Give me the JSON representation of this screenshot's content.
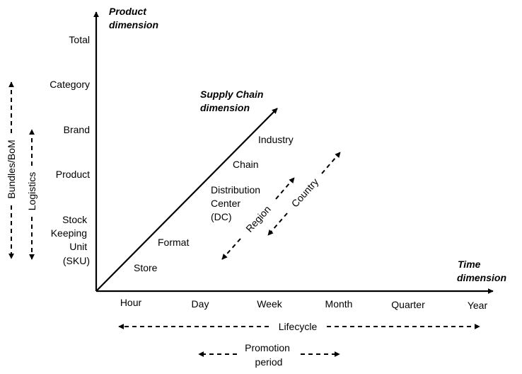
{
  "axes": {
    "product_title": [
      "Product",
      "dimension"
    ],
    "time_title": [
      "Time",
      "dimension"
    ],
    "supply_chain_title": [
      "Supply Chain",
      "dimension"
    ]
  },
  "product_levels": [
    [
      "Total"
    ],
    [
      "Category"
    ],
    [
      "Brand"
    ],
    [
      "Product"
    ],
    [
      "Stock",
      "Keeping",
      "Unit",
      "(SKU)"
    ]
  ],
  "time_levels": [
    "Hour",
    "Day",
    "Week",
    "Month",
    "Quarter",
    "Year"
  ],
  "supply_chain_levels": [
    [
      "Store"
    ],
    [
      "Format"
    ],
    [
      "Distribution",
      "Center",
      "(DC)"
    ],
    [
      "Chain"
    ],
    [
      "Industry"
    ]
  ],
  "ranges": {
    "bundles": "Bundles/BoM",
    "logistics": "Logistics",
    "region": "Region",
    "country": "Country",
    "lifecycle": "Lifecycle",
    "promotion": [
      "Promotion",
      "period"
    ]
  }
}
